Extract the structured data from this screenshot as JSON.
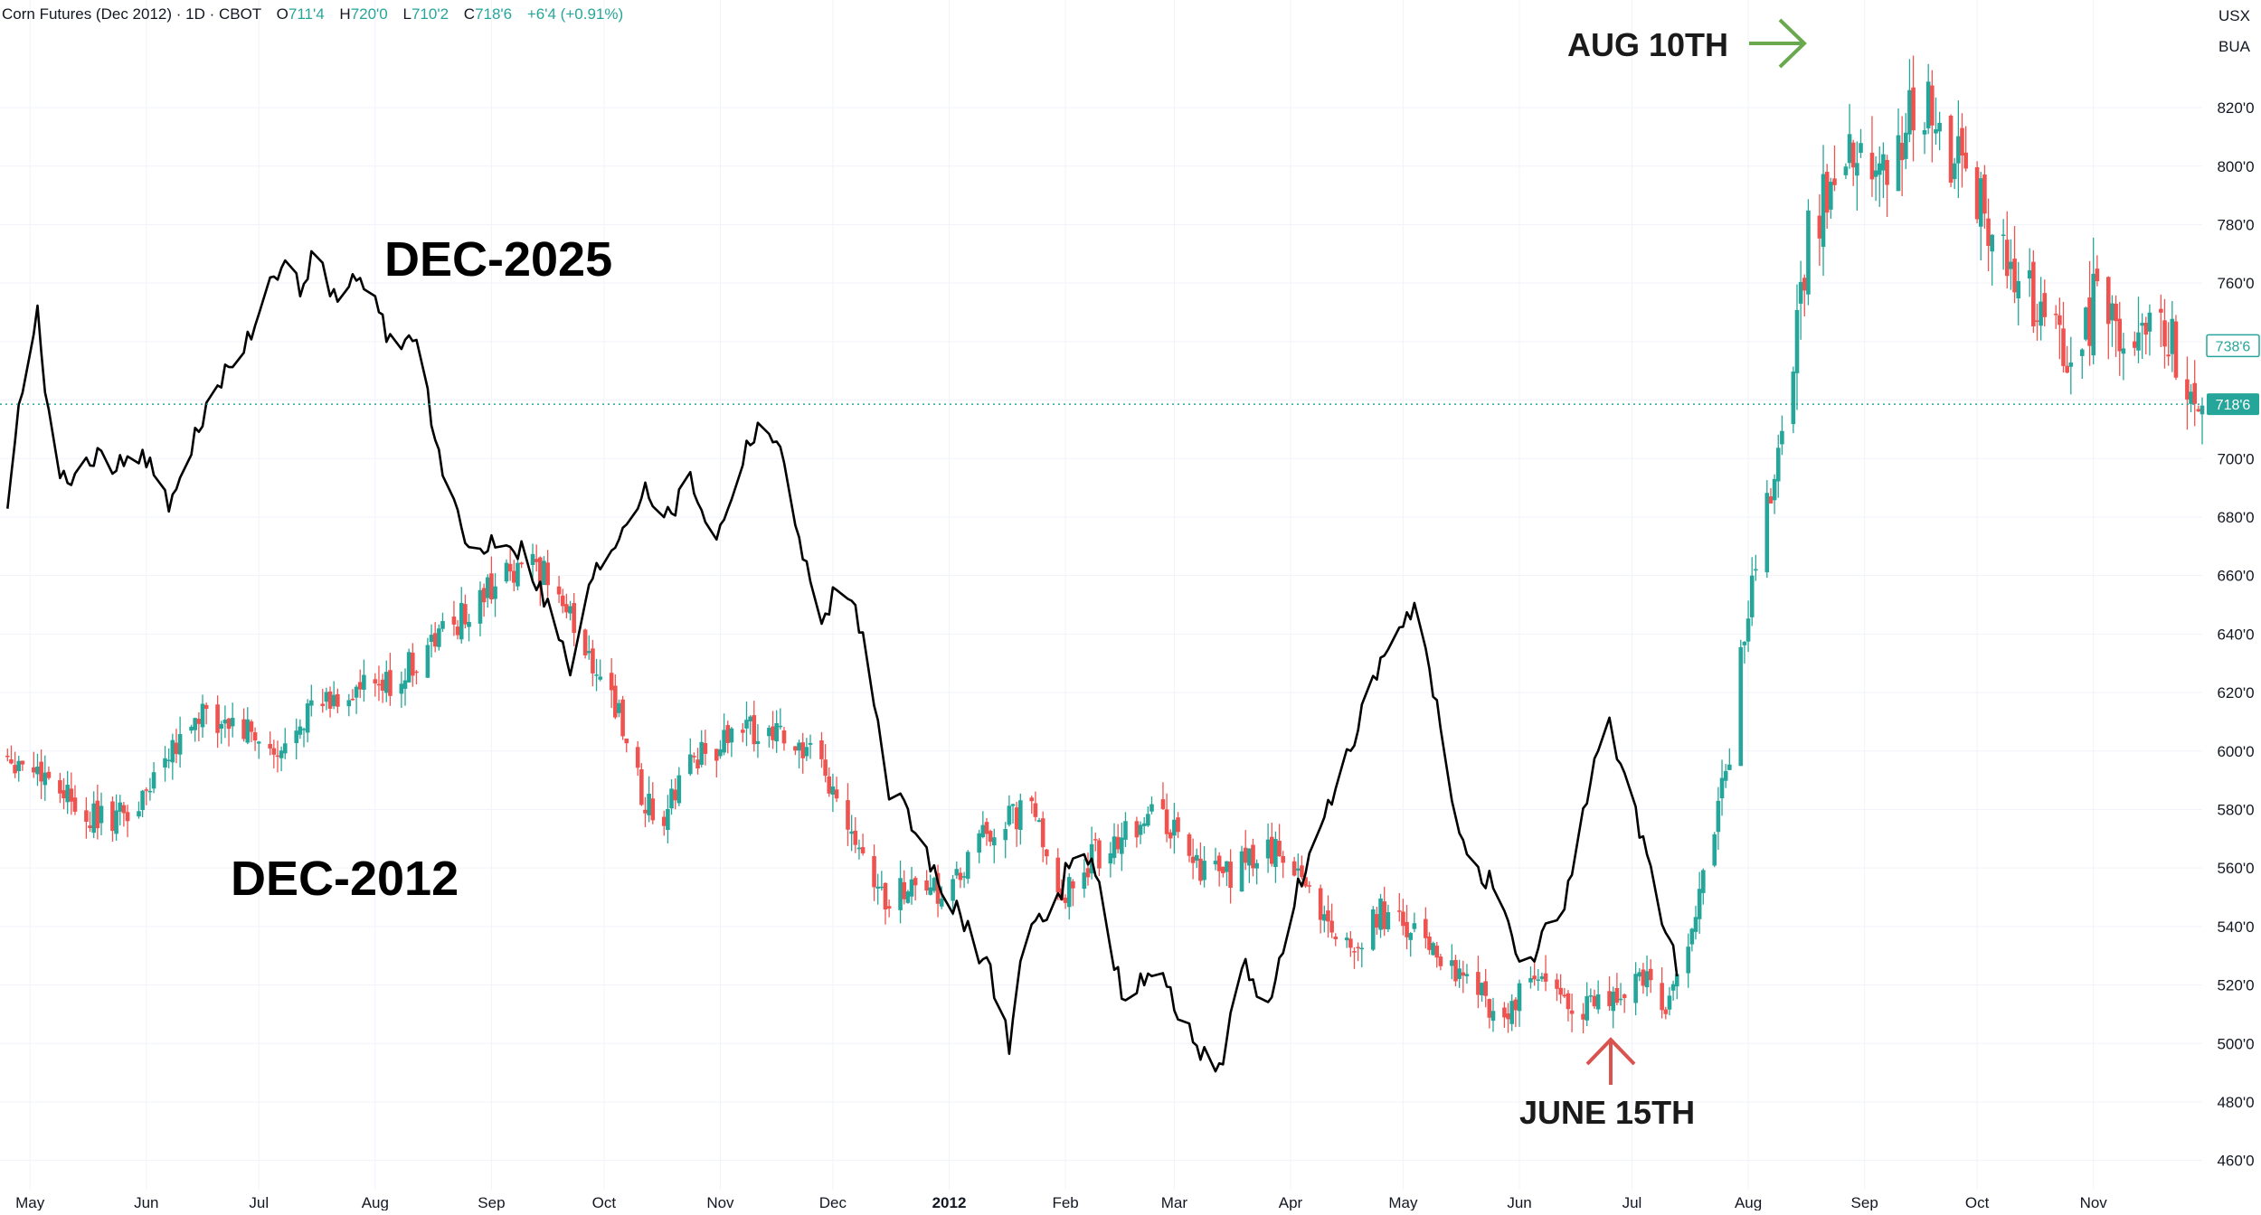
{
  "header": {
    "symbol_line": "Corn Futures (Dec 2012) · 1D · CBOT",
    "o_label": "O",
    "o_value": "711'4",
    "h_label": "H",
    "h_value": "720'0",
    "l_label": "L",
    "l_value": "710'2",
    "c_label": "C",
    "c_value": "718'6",
    "change": "+6'4 (+0.91%)"
  },
  "corner": {
    "currency": "USX",
    "unit": "BUA"
  },
  "colors": {
    "up": "#26a69a",
    "down": "#ef5350",
    "grid": "#f0f3fa",
    "line": "#000000",
    "arrow_up": "#6aa84f",
    "arrow_down": "#d9534f",
    "axis_text": "#131722"
  },
  "price_tags": {
    "upper": "738'6",
    "current": "718'6"
  },
  "annotations": {
    "dec2025": "DEC-2025",
    "dec2012": "DEC-2012",
    "aug10": "AUG 10TH",
    "june15": "JUNE 15TH"
  },
  "chart_data": {
    "type": "candlestick",
    "y_axis": {
      "ticks": [
        460,
        480,
        500,
        520,
        540,
        560,
        580,
        600,
        620,
        640,
        660,
        680,
        700,
        720,
        740,
        760,
        780,
        800,
        820
      ],
      "tick_labels": [
        "460'0",
        "480'0",
        "500'0",
        "520'0",
        "540'0",
        "560'0",
        "580'0",
        "600'0",
        "620'0",
        "640'0",
        "660'0",
        "680'0",
        "700'0",
        "720'0",
        "740'0",
        "760'0",
        "780'0",
        "800'0",
        "820'0"
      ],
      "range": [
        450,
        850
      ]
    },
    "x_axis": {
      "labels": [
        "May",
        "Jun",
        "Jul",
        "Aug",
        "Sep",
        "Oct",
        "Nov",
        "Dec",
        "2012",
        "Feb",
        "Mar",
        "Apr",
        "May",
        "Jun",
        "Jul",
        "Aug",
        "Sep",
        "Oct",
        "Nov"
      ],
      "bold_labels": [
        "2012"
      ],
      "range_dates": [
        "2011-04-23",
        "2012-11-30"
      ]
    },
    "series": [
      {
        "type": "candlestick",
        "anchors": [
          [
            "2011-04-23",
            600
          ],
          [
            "2011-05-05",
            592
          ],
          [
            "2011-05-20",
            576
          ],
          [
            "2011-05-30",
            580
          ],
          [
            "2011-06-06",
            600
          ],
          [
            "2011-06-17",
            614
          ],
          [
            "2011-06-30",
            604
          ],
          [
            "2011-07-06",
            595
          ],
          [
            "2011-07-12",
            612
          ],
          [
            "2011-07-27",
            620
          ],
          [
            "2011-08-05",
            622
          ],
          [
            "2011-08-12",
            631
          ],
          [
            "2011-08-20",
            642
          ],
          [
            "2011-08-27",
            648
          ],
          [
            "2011-09-02",
            658
          ],
          [
            "2011-09-08",
            664
          ],
          [
            "2011-09-16",
            660
          ],
          [
            "2011-09-26",
            635
          ],
          [
            "2011-10-03",
            620
          ],
          [
            "2011-10-10",
            590
          ],
          [
            "2011-10-16",
            572
          ],
          [
            "2011-10-24",
            598
          ],
          [
            "2011-11-05",
            605
          ],
          [
            "2011-11-14",
            610
          ],
          [
            "2011-11-27",
            595
          ],
          [
            "2011-12-06",
            575
          ],
          [
            "2011-12-15",
            548
          ],
          [
            "2011-12-22",
            555
          ],
          [
            "2012-01-02",
            552
          ],
          [
            "2012-01-11",
            572
          ],
          [
            "2012-01-23",
            580
          ],
          [
            "2012-01-31",
            552
          ],
          [
            "2012-02-12",
            568
          ],
          [
            "2012-02-25",
            580
          ],
          [
            "2012-03-07",
            562
          ],
          [
            "2012-03-14",
            556
          ],
          [
            "2012-03-26",
            566
          ],
          [
            "2012-04-02",
            562
          ],
          [
            "2012-04-09",
            545
          ],
          [
            "2012-04-16",
            533
          ],
          [
            "2012-04-25",
            544
          ],
          [
            "2012-05-07",
            535
          ],
          [
            "2012-05-20",
            520
          ],
          [
            "2012-05-28",
            508
          ],
          [
            "2012-06-05",
            522
          ],
          [
            "2012-06-12",
            514
          ],
          [
            "2012-06-22",
            512
          ],
          [
            "2012-06-30",
            518
          ],
          [
            "2012-07-04",
            525
          ],
          [
            "2012-07-09",
            512
          ],
          [
            "2012-07-14",
            530
          ],
          [
            "2012-07-21",
            560
          ],
          [
            "2012-07-27",
            600
          ],
          [
            "2012-07-31",
            640
          ],
          [
            "2012-08-04",
            672
          ],
          [
            "2012-08-09",
            700
          ],
          [
            "2012-08-13",
            740
          ],
          [
            "2012-08-17",
            778
          ],
          [
            "2012-08-22",
            790
          ],
          [
            "2012-08-30",
            805
          ],
          [
            "2012-09-10",
            800
          ],
          [
            "2012-09-15",
            828
          ],
          [
            "2012-09-22",
            808
          ],
          [
            "2012-09-28",
            800
          ],
          [
            "2012-10-05",
            780
          ],
          [
            "2012-10-12",
            752
          ],
          [
            "2012-10-19",
            758
          ],
          [
            "2012-10-26",
            728
          ],
          [
            "2012-11-02",
            758
          ],
          [
            "2012-11-09",
            742
          ],
          [
            "2012-11-16",
            750
          ],
          [
            "2012-11-22",
            738
          ],
          [
            "2012-11-27",
            720
          ],
          [
            "2012-11-30",
            718
          ]
        ]
      },
      {
        "type": "line",
        "anchors": [
          [
            "2011-04-23",
            650
          ],
          [
            "2011-04-26",
            695
          ],
          [
            "2011-04-28",
            715
          ],
          [
            "2011-04-30",
            738
          ],
          [
            "2011-05-03",
            748
          ],
          [
            "2011-05-05",
            725
          ],
          [
            "2011-05-08",
            700
          ],
          [
            "2011-05-11",
            688
          ],
          [
            "2011-05-17",
            702
          ],
          [
            "2011-05-23",
            695
          ],
          [
            "2011-05-29",
            705
          ],
          [
            "2011-06-04",
            692
          ],
          [
            "2011-06-08",
            684
          ],
          [
            "2011-06-15",
            710
          ],
          [
            "2011-06-21",
            728
          ],
          [
            "2011-06-27",
            740
          ],
          [
            "2011-07-03",
            755
          ],
          [
            "2011-07-07",
            765
          ],
          [
            "2011-07-12",
            760
          ],
          [
            "2011-07-16",
            770
          ],
          [
            "2011-07-20",
            755
          ],
          [
            "2011-07-26",
            760
          ],
          [
            "2011-08-01",
            752
          ],
          [
            "2011-08-07",
            736
          ],
          [
            "2011-08-12",
            745
          ],
          [
            "2011-08-17",
            705
          ],
          [
            "2011-08-22",
            682
          ],
          [
            "2011-08-27",
            666
          ],
          [
            "2011-09-03",
            675
          ],
          [
            "2011-09-10",
            668
          ],
          [
            "2011-09-16",
            650
          ],
          [
            "2011-09-22",
            628
          ],
          [
            "2011-09-28",
            660
          ],
          [
            "2011-10-05",
            675
          ],
          [
            "2011-10-12",
            692
          ],
          [
            "2011-10-18",
            680
          ],
          [
            "2011-10-24",
            694
          ],
          [
            "2011-10-31",
            672
          ],
          [
            "2011-11-06",
            698
          ],
          [
            "2011-11-12",
            716
          ],
          [
            "2011-11-18",
            698
          ],
          [
            "2011-11-22",
            676
          ],
          [
            "2011-11-27",
            642
          ],
          [
            "2011-12-03",
            660
          ],
          [
            "2011-12-09",
            640
          ],
          [
            "2011-12-15",
            590
          ],
          [
            "2011-12-22",
            575
          ],
          [
            "2011-12-29",
            556
          ],
          [
            "2012-01-05",
            540
          ],
          [
            "2012-01-12",
            525
          ],
          [
            "2012-01-17",
            500
          ],
          [
            "2012-01-22",
            545
          ],
          [
            "2012-01-28",
            540
          ],
          [
            "2012-02-04",
            572
          ],
          [
            "2012-02-10",
            552
          ],
          [
            "2012-02-16",
            516
          ],
          [
            "2012-02-21",
            522
          ],
          [
            "2012-02-28",
            522
          ],
          [
            "2012-03-06",
            500
          ],
          [
            "2012-03-13",
            492
          ],
          [
            "2012-03-20",
            528
          ],
          [
            "2012-03-26",
            510
          ],
          [
            "2012-04-02",
            550
          ],
          [
            "2012-04-09",
            572
          ],
          [
            "2012-04-16",
            600
          ],
          [
            "2012-04-22",
            618
          ],
          [
            "2012-04-28",
            638
          ],
          [
            "2012-05-04",
            648
          ],
          [
            "2012-05-09",
            622
          ],
          [
            "2012-05-14",
            580
          ],
          [
            "2012-05-20",
            562
          ],
          [
            "2012-05-26",
            552
          ],
          [
            "2012-06-02",
            520
          ],
          [
            "2012-06-07",
            538
          ],
          [
            "2012-06-13",
            544
          ],
          [
            "2012-06-18",
            580
          ],
          [
            "2012-06-24",
            612
          ],
          [
            "2012-06-30",
            590
          ],
          [
            "2012-07-04",
            568
          ],
          [
            "2012-07-08",
            548
          ],
          [
            "2012-07-13",
            525
          ]
        ]
      }
    ]
  }
}
